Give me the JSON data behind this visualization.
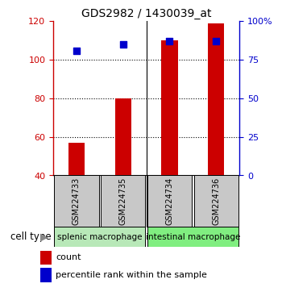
{
  "title": "GDS2982 / 1430039_at",
  "samples": [
    "GSM224733",
    "GSM224735",
    "GSM224734",
    "GSM224736"
  ],
  "counts": [
    57,
    80,
    110,
    119
  ],
  "percentile_ranks": [
    81,
    85,
    87,
    87
  ],
  "groups": [
    {
      "label": "splenic macrophage",
      "indices": [
        0,
        1
      ],
      "color": "#b8e8b8"
    },
    {
      "label": "intestinal macrophage",
      "indices": [
        2,
        3
      ],
      "color": "#80ee80"
    }
  ],
  "ylim_left": [
    40,
    120
  ],
  "ylim_right": [
    0,
    100
  ],
  "yticks_left": [
    40,
    60,
    80,
    100,
    120
  ],
  "ytick_labels_left": [
    "40",
    "60",
    "80",
    "100",
    "120"
  ],
  "yticks_right": [
    0,
    25,
    50,
    75,
    100
  ],
  "ytick_labels_right": [
    "0",
    "25",
    "50",
    "75",
    "100%"
  ],
  "left_axis_color": "#cc0000",
  "right_axis_color": "#0000cc",
  "bar_color": "#cc0000",
  "dot_color": "#0000cc",
  "bar_width": 0.35,
  "background_color": "#ffffff",
  "legend_count_color": "#cc0000",
  "legend_pct_color": "#0000cc",
  "cell_type_label": "cell type",
  "group_bg_color_1": "#b8e8b8",
  "group_bg_color_2": "#80ee80",
  "sample_box_color": "#c8c8c8",
  "gridline_values": [
    60,
    80,
    100
  ],
  "n_samples": 4
}
